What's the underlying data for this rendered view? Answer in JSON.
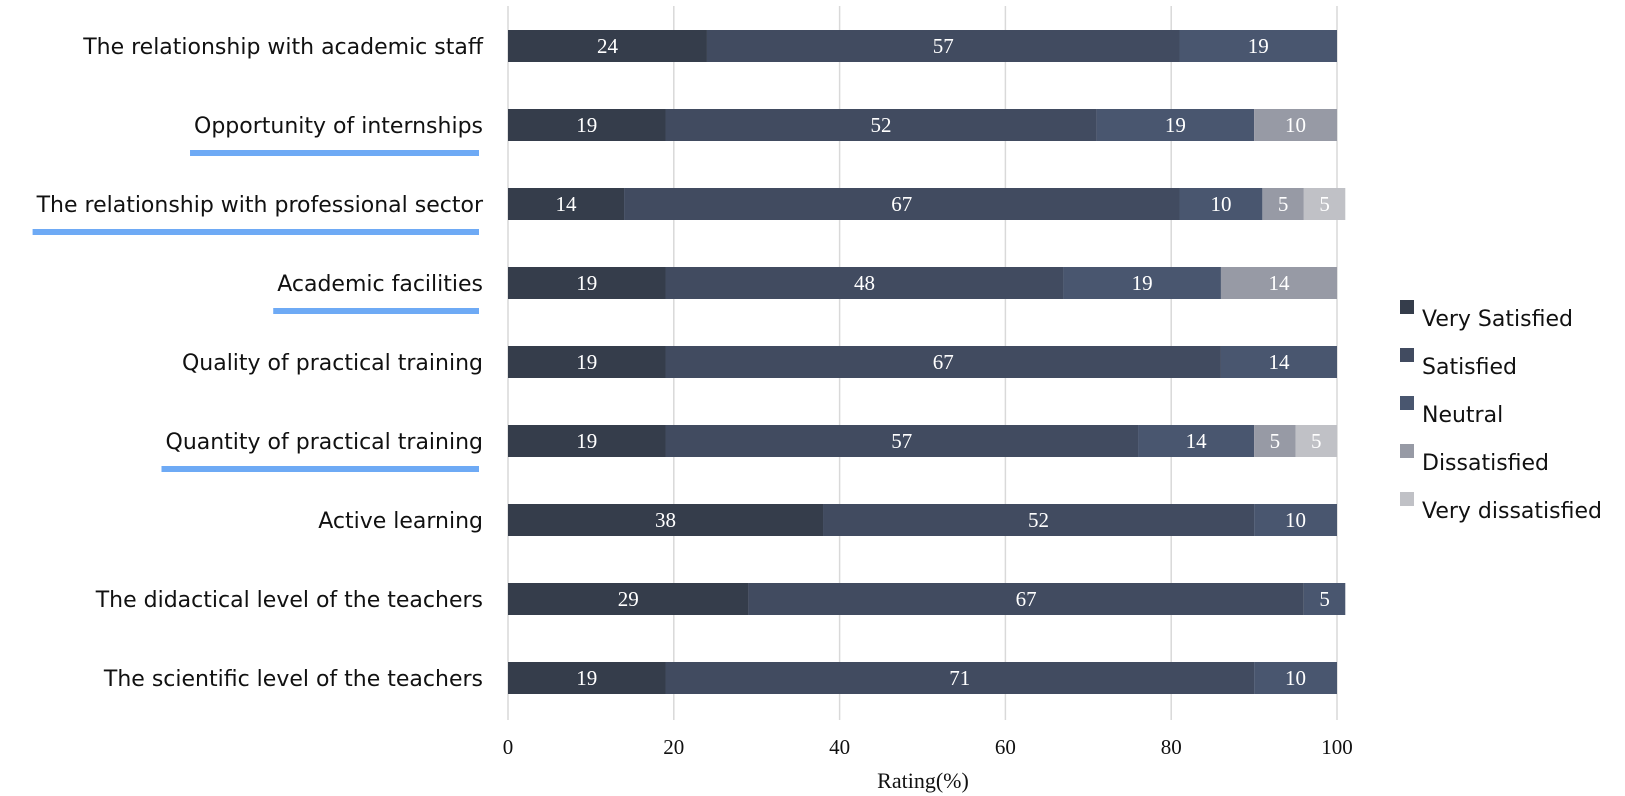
{
  "chart_data": {
    "type": "bar",
    "orientation": "horizontal",
    "stacked": true,
    "categories": [
      "The relationship with academic staff",
      "Opportunity of internships",
      "The relationship with professional sector",
      "Academic facilities",
      "Quality of practical training",
      "Quantity of practical training",
      "Active learning",
      "The didactical level of the teachers",
      "The scientific level of the teachers"
    ],
    "highlighted_categories": [
      "Opportunity of internships",
      "The relationship with professional sector",
      "Academic facilities",
      "Quantity of practical training"
    ],
    "series": [
      {
        "name": "Very Satisfied",
        "color": "#353d4b",
        "values": [
          24,
          19,
          14,
          19,
          19,
          19,
          38,
          29,
          19
        ]
      },
      {
        "name": "Satisfied",
        "color": "#414b60",
        "values": [
          57,
          52,
          67,
          48,
          67,
          57,
          52,
          67,
          71
        ]
      },
      {
        "name": "Neutral",
        "color": "#49566f",
        "values": [
          19,
          19,
          10,
          19,
          14,
          14,
          10,
          5,
          10
        ]
      },
      {
        "name": "Dissatisfied",
        "color": "#979aa5",
        "values": [
          0,
          10,
          5,
          14,
          0,
          5,
          0,
          0,
          0
        ]
      },
      {
        "name": "Very dissatisfied",
        "color": "#c0c1c6",
        "values": [
          0,
          0,
          5,
          0,
          0,
          5,
          0,
          0,
          0
        ]
      }
    ],
    "xlabel": "Rating(%)",
    "ylabel": "",
    "xlim": [
      0,
      100
    ],
    "xticks": [
      0,
      20,
      40,
      60,
      80,
      100
    ],
    "grid": true,
    "legend_position": "right",
    "highlight_color": "#6eaaf5"
  }
}
